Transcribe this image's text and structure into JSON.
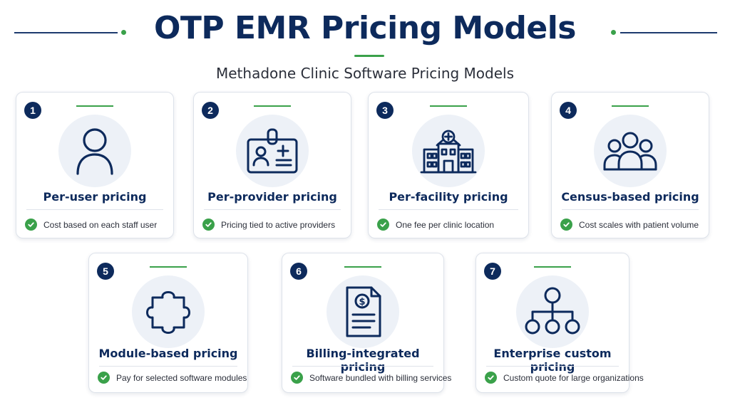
{
  "header": {
    "title": "OTP EMR Pricing Models",
    "subtitle": "Methadone Clinic Software Pricing Models"
  },
  "colors": {
    "navy": "#0d2a5c",
    "green": "#3aa14a",
    "icon_bg": "#edf1f7"
  },
  "cards": [
    {
      "number": "1",
      "icon": "user-icon",
      "title": "Per-user pricing",
      "feature": "Cost based on each staff user"
    },
    {
      "number": "2",
      "icon": "id-badge-icon",
      "title": "Per-provider pricing",
      "feature": "Pricing tied to active providers"
    },
    {
      "number": "3",
      "icon": "hospital-building-icon",
      "title": "Per-facility pricing",
      "feature": "One fee per clinic location"
    },
    {
      "number": "4",
      "icon": "group-icon",
      "title": "Census-based pricing",
      "feature": "Cost scales with patient volume"
    },
    {
      "number": "5",
      "icon": "puzzle-piece-icon",
      "title": "Module-based pricing",
      "feature": "Pay for selected software modules"
    },
    {
      "number": "6",
      "icon": "invoice-dollar-icon",
      "title": "Billing-integrated pricing",
      "feature": "Software bundled with billing services"
    },
    {
      "number": "7",
      "icon": "org-chart-icon",
      "title": "Enterprise custom pricing",
      "feature": "Custom quote for large organizations"
    }
  ]
}
